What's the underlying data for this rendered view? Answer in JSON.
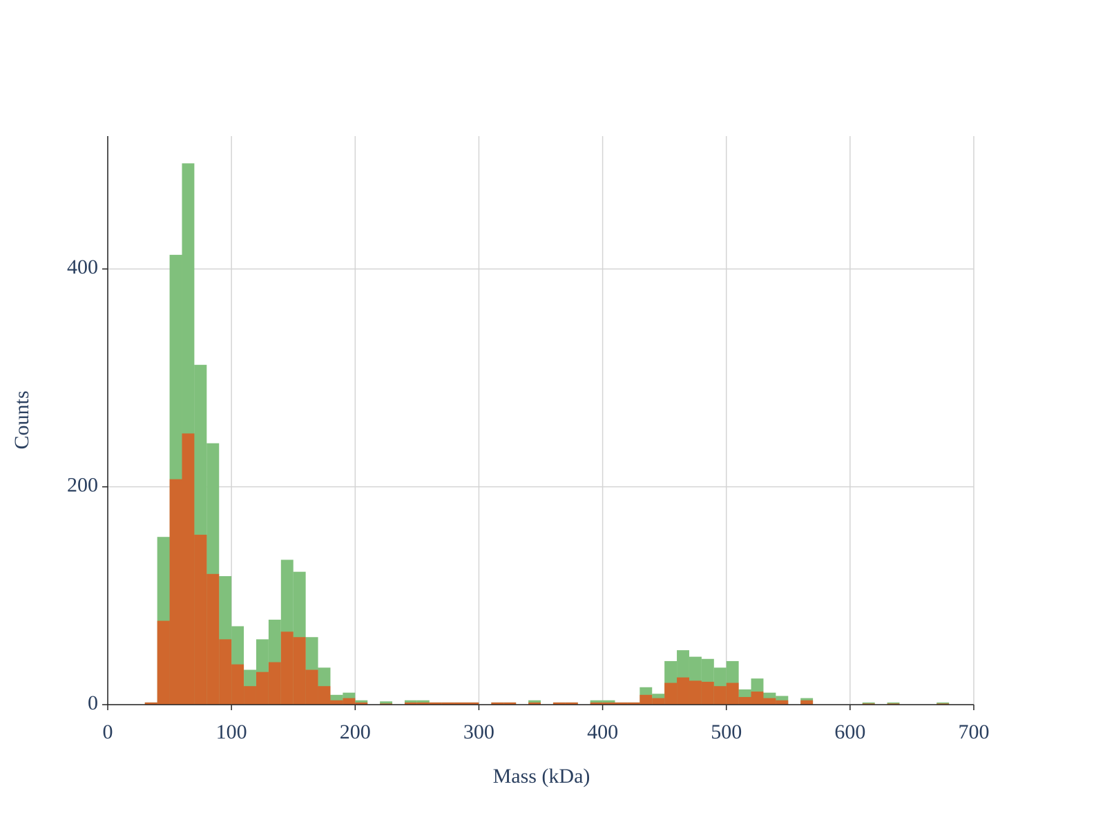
{
  "chart_data": {
    "type": "histogram",
    "x_label": "Mass (kDa)",
    "y_label": "Counts",
    "bins": [
      30,
      40,
      50,
      60,
      70,
      80,
      90,
      100,
      110,
      120,
      130,
      140,
      150,
      160,
      170,
      180,
      190,
      200,
      210,
      220,
      230,
      240,
      250,
      260,
      270,
      280,
      290,
      300,
      310,
      320,
      330,
      340,
      350,
      360,
      370,
      380,
      390,
      400,
      410,
      420,
      430,
      440,
      450,
      460,
      470,
      480,
      490,
      500,
      510,
      520,
      530,
      540,
      550,
      560,
      570,
      580,
      590,
      600,
      610,
      620,
      630,
      640,
      650,
      660,
      670,
      680
    ],
    "series": [
      {
        "color": "#80c07c",
        "values": [
          2,
          154,
          413,
          497,
          312,
          240,
          118,
          72,
          32,
          60,
          78,
          133,
          122,
          62,
          34,
          9,
          11,
          4,
          0,
          3,
          0,
          4,
          4,
          2,
          2,
          2,
          2,
          0,
          2,
          2,
          0,
          4,
          0,
          2,
          2,
          0,
          4,
          4,
          2,
          2,
          16,
          10,
          40,
          50,
          44,
          42,
          34,
          40,
          14,
          24,
          11,
          8,
          0,
          6,
          0,
          0,
          0,
          0,
          2,
          0,
          2,
          0,
          0,
          0,
          2
        ]
      },
      {
        "color": "#d0672d",
        "values": [
          2,
          77,
          207,
          249,
          156,
          120,
          60,
          37,
          17,
          30,
          39,
          67,
          62,
          32,
          17,
          4,
          6,
          2,
          0,
          1,
          0,
          2,
          2,
          2,
          2,
          2,
          2,
          0,
          2,
          2,
          0,
          2,
          0,
          2,
          2,
          0,
          2,
          2,
          2,
          2,
          9,
          6,
          20,
          25,
          22,
          21,
          17,
          20,
          7,
          12,
          6,
          4,
          0,
          4,
          0,
          0,
          0,
          0,
          1,
          0,
          1,
          0,
          0,
          0,
          1
        ]
      }
    ],
    "xlim": [
      0,
      700
    ],
    "xticks": [
      0,
      100,
      200,
      300,
      400,
      500,
      600,
      700
    ],
    "ylim": [
      0,
      522
    ],
    "yticks": [
      0,
      200,
      400
    ],
    "grid": true
  }
}
